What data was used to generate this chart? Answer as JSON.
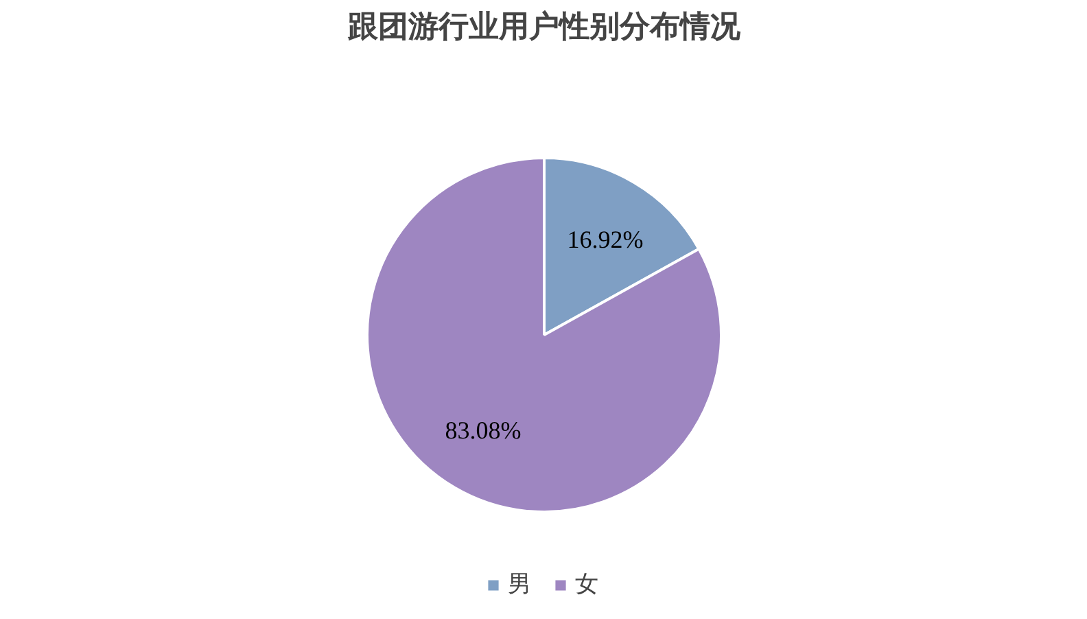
{
  "chart_data": {
    "type": "pie",
    "title": "跟团游行业用户性别分布情况",
    "categories": [
      "男",
      "女"
    ],
    "values": [
      16.92,
      83.08
    ],
    "colors": [
      "#7f9fc4",
      "#9e86c1"
    ],
    "value_labels": [
      "16.92%",
      "83.08%"
    ],
    "legend": "bottom"
  }
}
